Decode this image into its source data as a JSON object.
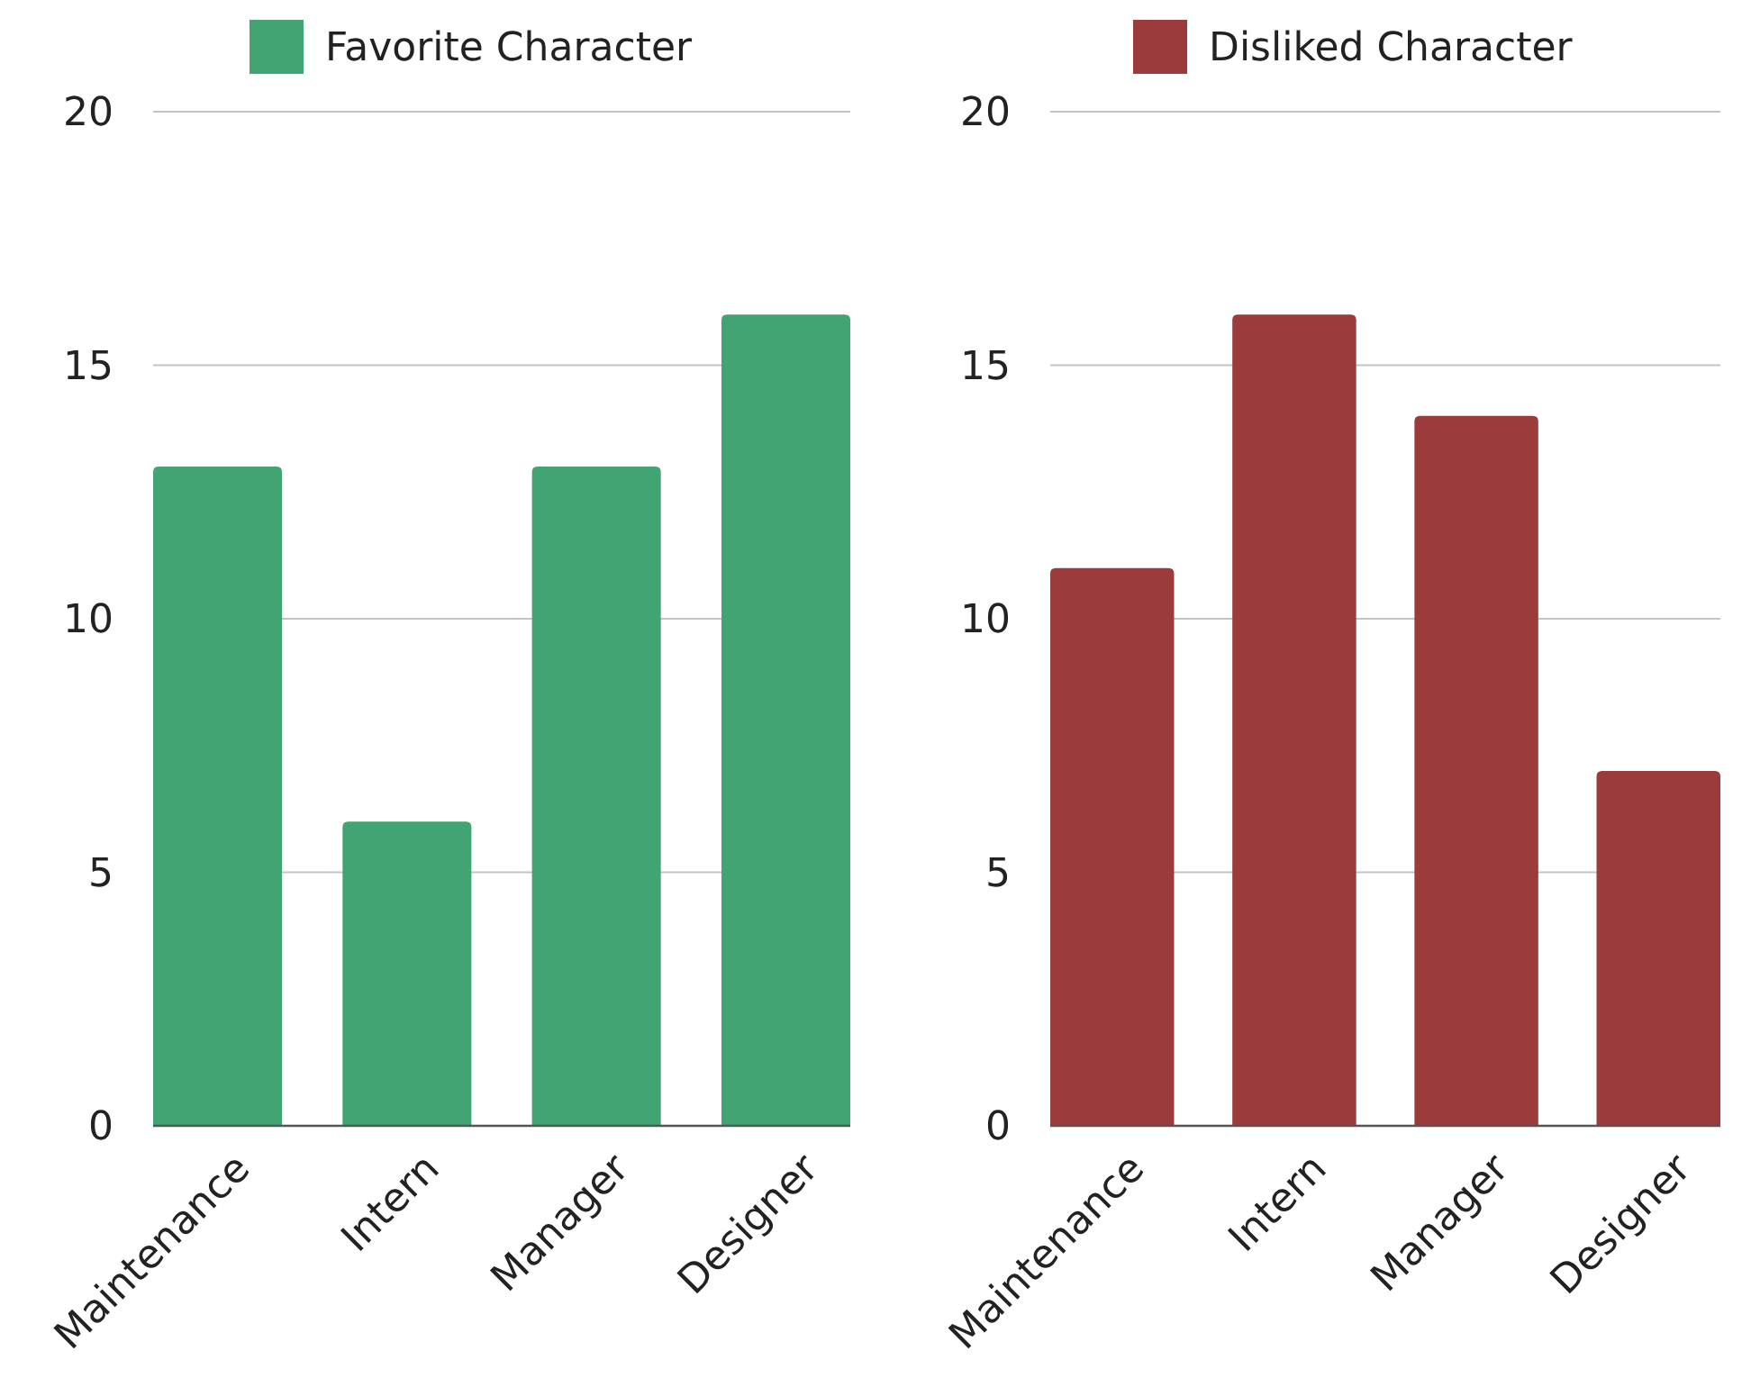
{
  "chart_data": [
    {
      "type": "bar",
      "categories": [
        "Maintenance",
        "Intern",
        "Manager",
        "Designer"
      ],
      "series": [
        {
          "name": "Favorite Character",
          "color": "#42a373",
          "values": [
            13,
            6,
            13,
            16
          ]
        }
      ],
      "ylim": [
        0,
        20
      ],
      "yticks": [
        0,
        5,
        10,
        15,
        20
      ],
      "grid": "y",
      "legend": "top"
    },
    {
      "type": "bar",
      "categories": [
        "Maintenance",
        "Intern",
        "Manager",
        "Designer"
      ],
      "series": [
        {
          "name": "Disliked Character",
          "color": "#9b3b3c",
          "values": [
            11,
            16,
            14,
            7
          ]
        }
      ],
      "ylim": [
        0,
        20
      ],
      "yticks": [
        0,
        5,
        10,
        15,
        20
      ],
      "grid": "y",
      "legend": "top"
    }
  ]
}
